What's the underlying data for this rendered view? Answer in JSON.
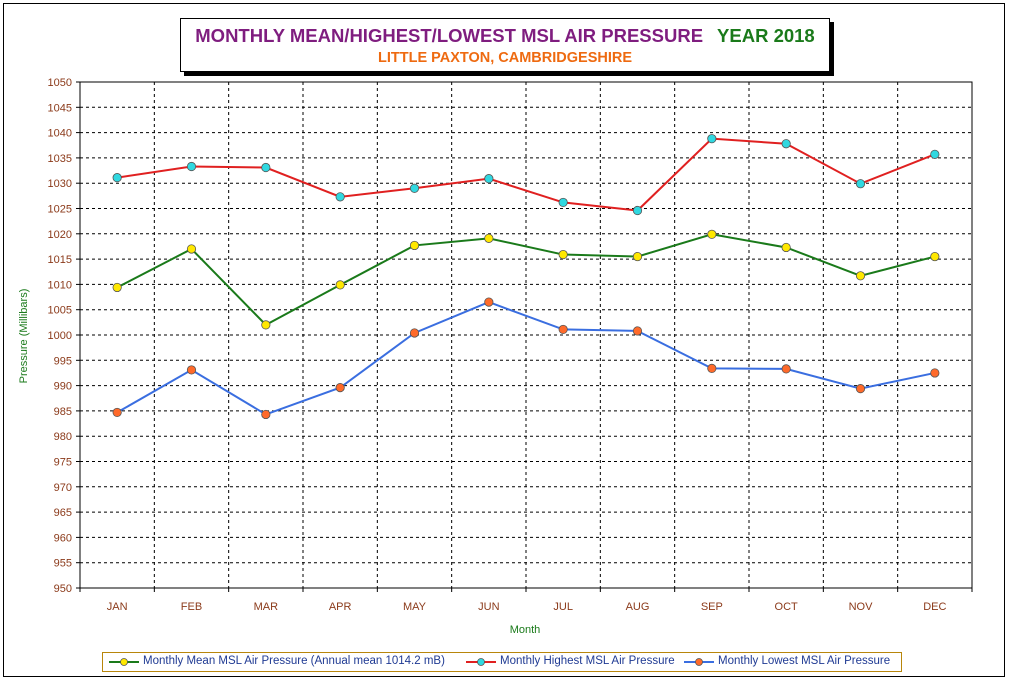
{
  "title": {
    "main": "MONTHLY MEAN/HIGHEST/LOWEST MSL AIR PRESSURE",
    "year": "YEAR 2018",
    "subtitle": "LITTLE PAXTON, CAMBRIDGESHIRE"
  },
  "colors": {
    "title_main": "#7f1d7f",
    "title_year": "#1a7a1a",
    "subtitle": "#ee6a10",
    "axis_labels": "#1a7a1a",
    "tick_labels": "#8b3a1a",
    "mean_line": "#1a7a1a",
    "mean_marker": "#ffe800",
    "highest_line": "#e02020",
    "highest_marker": "#30d8e0",
    "lowest_line": "#3a6ee0",
    "lowest_marker": "#ff6a2a",
    "legend_text": "#1f3a93"
  },
  "chart_data": {
    "type": "line",
    "xlabel": "Month",
    "ylabel": "Pressure (Millibars)",
    "categories": [
      "JAN",
      "FEB",
      "MAR",
      "APR",
      "MAY",
      "JUN",
      "JUL",
      "AUG",
      "SEP",
      "OCT",
      "NOV",
      "DEC"
    ],
    "ylim": [
      950,
      1050
    ],
    "ytick_step": 5,
    "grid": true,
    "legend_position": "bottom",
    "series": [
      {
        "name": "Monthly Mean MSL Air Pressure (Annual mean 1014.2 mB)",
        "line_color": "#1a7a1a",
        "marker_color": "#ffe800",
        "values": [
          1009.4,
          1017.0,
          1002.0,
          1009.9,
          1017.7,
          1019.1,
          1015.9,
          1015.5,
          1019.9,
          1017.3,
          1011.7,
          1015.5
        ]
      },
      {
        "name": "Monthly Highest MSL Air Pressure",
        "line_color": "#e02020",
        "marker_color": "#30d8e0",
        "values": [
          1031.1,
          1033.3,
          1033.1,
          1027.3,
          1029.0,
          1030.9,
          1026.2,
          1024.6,
          1038.8,
          1037.8,
          1029.9,
          1035.7
        ]
      },
      {
        "name": "Monthly Lowest MSL Air Pressure",
        "line_color": "#3a6ee0",
        "marker_color": "#ff6a2a",
        "values": [
          984.7,
          993.1,
          984.3,
          989.6,
          1000.4,
          1006.5,
          1001.1,
          1000.8,
          993.4,
          993.3,
          989.4,
          992.5
        ]
      }
    ]
  }
}
